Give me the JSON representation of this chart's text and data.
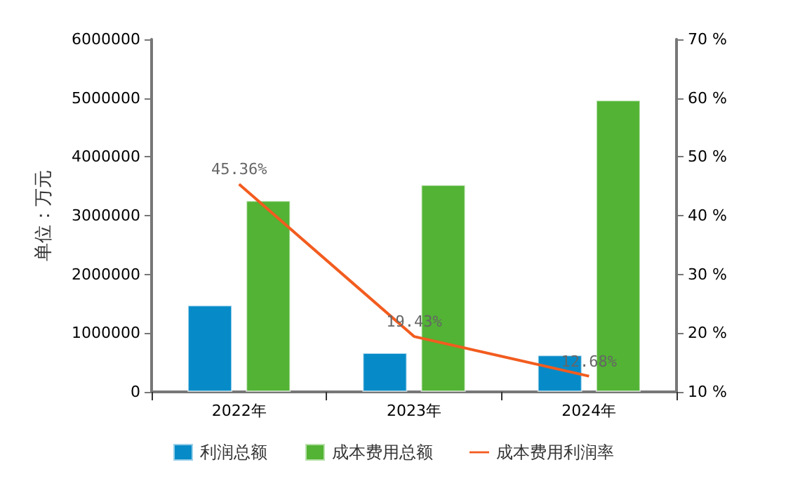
{
  "chart_data": {
    "type": "bar",
    "ylabel": "单位：万元",
    "categories": [
      "2022年",
      "2023年",
      "2024年"
    ],
    "series": [
      {
        "name": "利润总额",
        "color": "#068bc8",
        "values": [
          1480000,
          670000,
          630000
        ]
      },
      {
        "name": "成本费用总额",
        "color": "#52b334",
        "values": [
          3260000,
          3530000,
          4970000
        ]
      },
      {
        "name": "成本费用利润率",
        "type": "line",
        "axis": "y2",
        "color": "#f25c1f",
        "values": [
          45.36,
          19.43,
          12.68
        ],
        "value_labels": [
          "45.36%",
          "19.43%",
          "12.68%"
        ]
      }
    ],
    "ylim": [
      0,
      6000000
    ],
    "yticks": [
      0,
      1000000,
      2000000,
      3000000,
      4000000,
      5000000,
      6000000
    ],
    "y2lim": [
      10,
      70
    ],
    "y2ticks": [
      {
        "value": 10,
        "label": "10 %"
      },
      {
        "value": 20,
        "label": "20 %"
      },
      {
        "value": 30,
        "label": "30 %"
      },
      {
        "value": 40,
        "label": "40 %"
      },
      {
        "value": 50,
        "label": "50 %"
      },
      {
        "value": 60,
        "label": "60 %"
      },
      {
        "value": 70,
        "label": "70 %"
      }
    ],
    "legend": "bottom",
    "grid": false,
    "marker": "none"
  }
}
